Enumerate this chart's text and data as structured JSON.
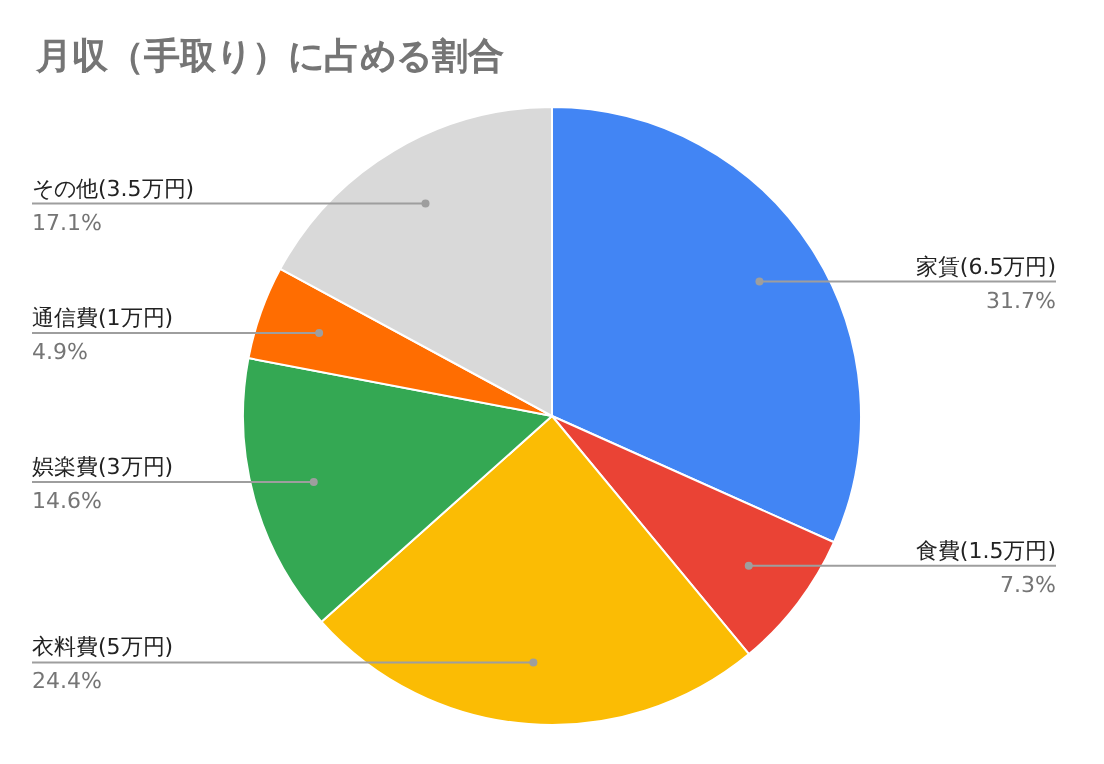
{
  "chart_data": {
    "type": "pie",
    "title": "月収（手取り）に占める割合",
    "categories": [
      "家賃(6.5万円)",
      "食費(1.5万円)",
      "衣料費(5万円)",
      "娯楽費(3万円)",
      "通信費(1万円)",
      "その他(3.5万円)"
    ],
    "values": [
      31.7,
      7.3,
      24.4,
      14.6,
      4.9,
      17.1
    ],
    "colors": [
      "#4285f4",
      "#ea4335",
      "#fbbc04",
      "#34a853",
      "#ff6d01",
      "#d9d9d9"
    ],
    "value_labels": [
      "31.7%",
      "7.3%",
      "24.4%",
      "14.6%",
      "4.9%",
      "17.1%"
    ],
    "legend": false
  }
}
